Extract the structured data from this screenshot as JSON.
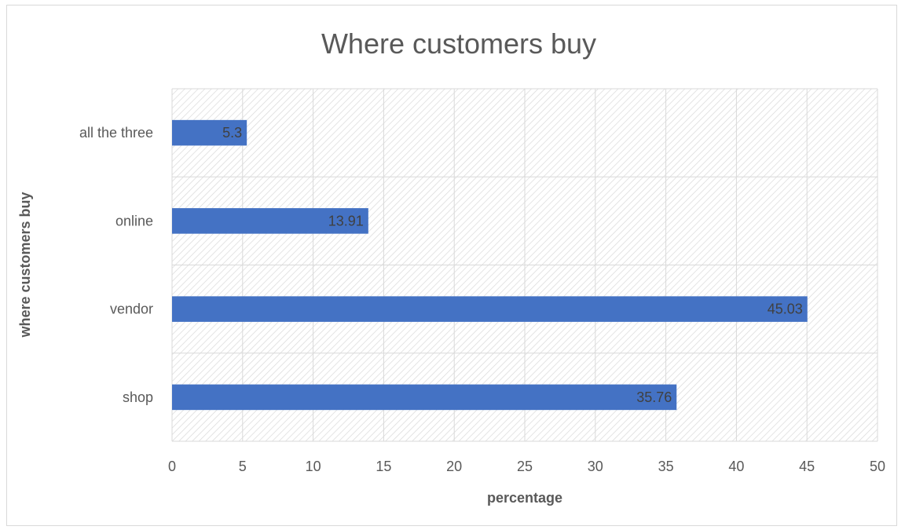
{
  "chart_data": {
    "type": "bar",
    "orientation": "horizontal",
    "title": "Where customers buy",
    "xlabel": "percentage",
    "ylabel": "where customers buy",
    "categories": [
      "all the three",
      "online",
      "vendor",
      "shop"
    ],
    "values": [
      5.3,
      13.91,
      45.03,
      35.76
    ],
    "data_labels": [
      "5.3",
      "13.91",
      "45.03",
      "35.76"
    ],
    "xlim": [
      0,
      50
    ],
    "x_ticks": [
      0,
      5,
      10,
      15,
      20,
      25,
      30,
      35,
      40,
      45,
      50
    ],
    "grid": true,
    "legend": "none",
    "colors": {
      "bar": "#4472c4",
      "grid": "#d9d9d9",
      "hatch": "#d9d9d9",
      "text": "#595959"
    }
  }
}
